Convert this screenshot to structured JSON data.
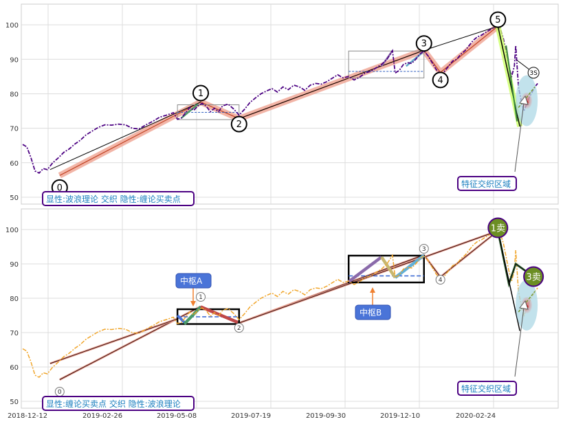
{
  "chart_data": {
    "type": "line",
    "x_ticks": [
      "2018-12-12",
      "2019-02-26",
      "2019-05-08",
      "2019-07-19",
      "2019-09-30",
      "2019-12-10",
      "2020-02-24"
    ],
    "ylim": [
      48,
      106
    ],
    "y_ticks": [
      50,
      60,
      70,
      80,
      90,
      100
    ],
    "grid": true,
    "price_series": [
      [
        0,
        65.3
      ],
      [
        3,
        64.6
      ],
      [
        6,
        61.5
      ],
      [
        9,
        57.6
      ],
      [
        12,
        57.0
      ],
      [
        15,
        58.3
      ],
      [
        18,
        58.0
      ],
      [
        22,
        60.0
      ],
      [
        26,
        61.4
      ],
      [
        30,
        63.0
      ],
      [
        34,
        64.0
      ],
      [
        38,
        65.4
      ],
      [
        42,
        66.5
      ],
      [
        46,
        68.0
      ],
      [
        50,
        69.0
      ],
      [
        55,
        70.2
      ],
      [
        60,
        71.0
      ],
      [
        65,
        70.9
      ],
      [
        70,
        71.2
      ],
      [
        75,
        71.0
      ],
      [
        80,
        70.0
      ],
      [
        85,
        69.8
      ],
      [
        90,
        71.0
      ],
      [
        95,
        72.0
      ],
      [
        100,
        73.2
      ],
      [
        105,
        73.8
      ],
      [
        110,
        74.5
      ],
      [
        113,
        72.6
      ],
      [
        116,
        73.0
      ],
      [
        119,
        74.5
      ],
      [
        122,
        76.0
      ],
      [
        125,
        75.2
      ],
      [
        128,
        76.5
      ],
      [
        131,
        77.2
      ],
      [
        134,
        76.4
      ],
      [
        137,
        74.8
      ],
      [
        140,
        75.8
      ],
      [
        143,
        74.8
      ],
      [
        146,
        76.5
      ],
      [
        150,
        77.0
      ],
      [
        154,
        75.6
      ],
      [
        158,
        73.8
      ],
      [
        162,
        75.5
      ],
      [
        166,
        77.5
      ],
      [
        170,
        78.8
      ],
      [
        174,
        80.0
      ],
      [
        178,
        80.8
      ],
      [
        182,
        81.5
      ],
      [
        186,
        80.5
      ],
      [
        190,
        82.0
      ],
      [
        194,
        81.2
      ],
      [
        198,
        82.5
      ],
      [
        202,
        82.0
      ],
      [
        206,
        81.0
      ],
      [
        210,
        82.5
      ],
      [
        214,
        83.0
      ],
      [
        218,
        82.8
      ],
      [
        222,
        83.5
      ],
      [
        226,
        84.5
      ],
      [
        230,
        85.5
      ],
      [
        234,
        84.6
      ],
      [
        238,
        85.0
      ],
      [
        242,
        84.0
      ],
      [
        246,
        84.8
      ],
      [
        250,
        86.0
      ],
      [
        254,
        86.5
      ],
      [
        258,
        87.5
      ],
      [
        262,
        88.5
      ],
      [
        266,
        90.0
      ],
      [
        270,
        92.5
      ],
      [
        272,
        86.0
      ],
      [
        275,
        86.8
      ],
      [
        278,
        88.5
      ],
      [
        281,
        89.0
      ],
      [
        284,
        88.8
      ],
      [
        287,
        90.0
      ],
      [
        290,
        91.5
      ],
      [
        293,
        92.4
      ],
      [
        296,
        91.0
      ],
      [
        299,
        89.0
      ],
      [
        302,
        87.0
      ],
      [
        305,
        85.6
      ],
      [
        308,
        86.5
      ],
      [
        311,
        88.0
      ],
      [
        314,
        89.5
      ],
      [
        317,
        90.0
      ],
      [
        320,
        91.5
      ],
      [
        323,
        92.5
      ],
      [
        326,
        94.0
      ],
      [
        329,
        95.5
      ],
      [
        332,
        96.5
      ],
      [
        335,
        97.0
      ],
      [
        338,
        97.8
      ],
      [
        341,
        98.5
      ],
      [
        344,
        99.2
      ],
      [
        347,
        99.6
      ],
      [
        349,
        98.5
      ],
      [
        351,
        96.0
      ],
      [
        353,
        92.0
      ],
      [
        355,
        88.0
      ],
      [
        357,
        85.0
      ],
      [
        359,
        88.0
      ],
      [
        360,
        94.0
      ],
      [
        361,
        88.0
      ],
      [
        362,
        82.0
      ],
      [
        364,
        78.0
      ],
      [
        366,
        75.0
      ],
      [
        368,
        77.0
      ],
      [
        370,
        79.0
      ],
      [
        372,
        80.5
      ],
      [
        374,
        82.0
      ],
      [
        376,
        83.0
      ]
    ],
    "wave_points": [
      {
        "label": "0",
        "x": 27,
        "y": 56.3
      },
      {
        "label": "1",
        "x": 130,
        "y": 77.6
      },
      {
        "label": "2",
        "x": 158,
        "y": 72.8
      },
      {
        "label": "3",
        "x": 293,
        "y": 92.6
      },
      {
        "label": "4",
        "x": 305,
        "y": 86.2
      },
      {
        "label": "5",
        "x": 347,
        "y": 99.6
      },
      {
        "label": "3S",
        "x": 373,
        "y": 86.1
      }
    ],
    "zhongshu": [
      {
        "name": "中枢A",
        "x0": 113,
        "x1": 158,
        "y0": 72.5,
        "y1": 76.8,
        "mid": 74.6
      },
      {
        "name": "中枢B",
        "x0": 238,
        "x1": 293,
        "y0": 84.6,
        "y1": 92.4,
        "mid": 86.5
      }
    ],
    "markers": {
      "buy_sell_1": "1卖",
      "buy_sell_3": "3卖",
      "feature_label": "特征交织区域"
    },
    "legend_top": "显性:波浪理论 交织 隐性:缠论买卖点",
    "legend_bottom": "显性:缠论买卖点 交织 隐性:波浪理论",
    "colors": {
      "price_top": "#4b0082",
      "price_bottom": "#f0a52a",
      "wave_band": "#f0a898",
      "circle_outline": "#000000",
      "legend_border": "#4b0082",
      "legend_text": "#1a7fbf",
      "label_blue": "#4a74d8",
      "sell_green": "#6b8e23",
      "feature_glow": "#add8e6"
    }
  }
}
